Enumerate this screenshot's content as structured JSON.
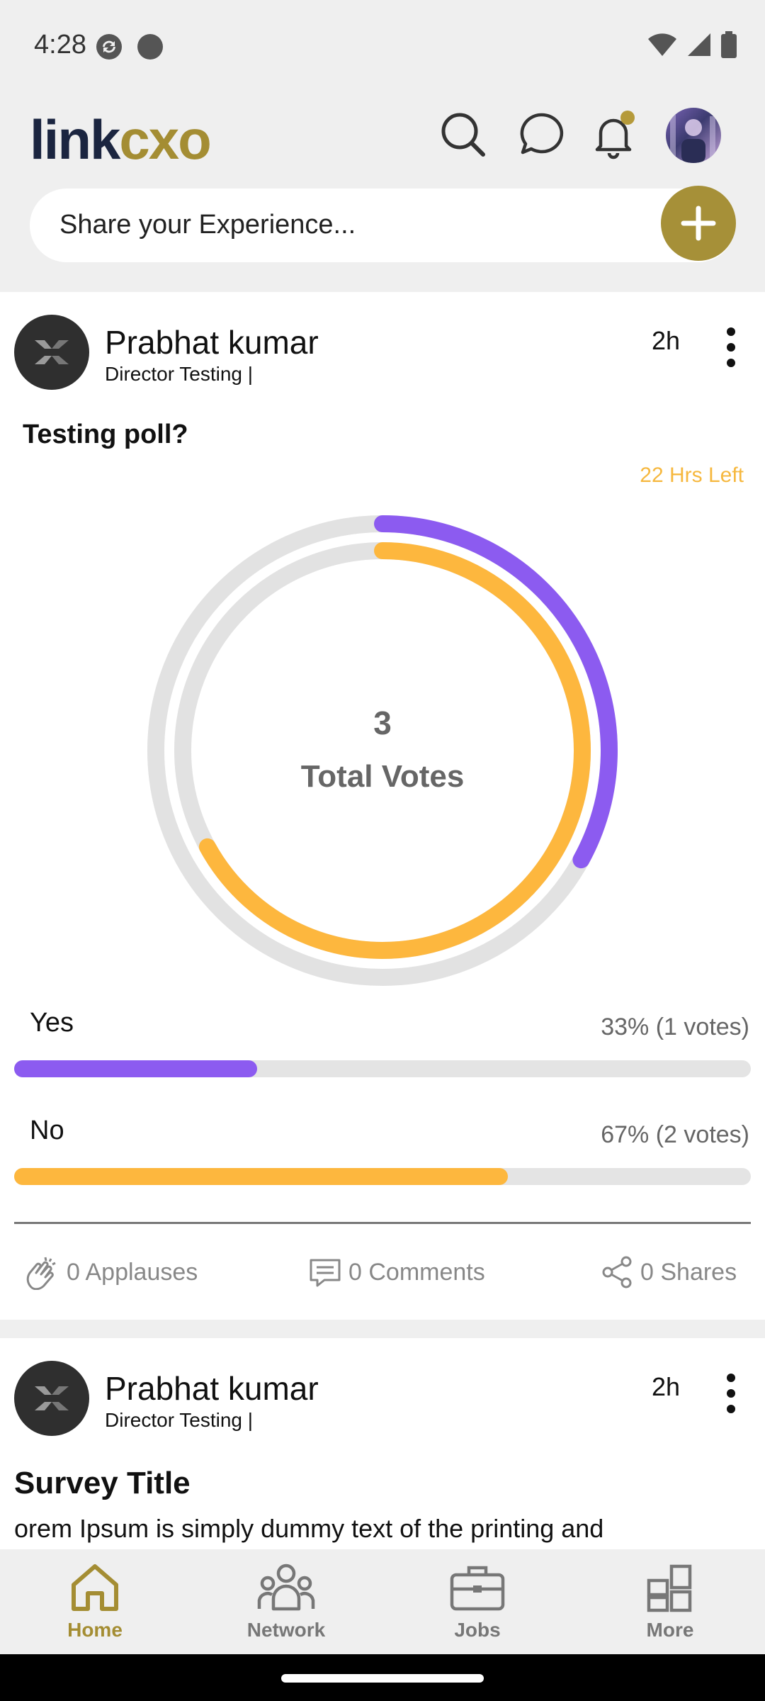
{
  "status_bar": {
    "time": "4:28"
  },
  "header": {
    "logo_text_1": "link",
    "logo_text_2": "cxo",
    "share_placeholder": "Share your Experience..."
  },
  "posts": [
    {
      "author": "Prabhat kumar",
      "role": "Director Testing |",
      "age": "2h",
      "question": "Testing poll?",
      "time_left": "22 Hrs Left",
      "total_votes": "3",
      "total_votes_label": "Total Votes",
      "options": [
        {
          "label": "Yes",
          "result": "33% (1 votes)",
          "percent": 33,
          "color": "#8c5bf0"
        },
        {
          "label": "No",
          "result": "67% (2 votes)",
          "percent": 67,
          "color": "#fdb73e"
        }
      ],
      "actions": {
        "applauses": "0 Applauses",
        "comments": "0 Comments",
        "shares": "0 Shares"
      }
    },
    {
      "author": "Prabhat kumar",
      "role": "Director Testing |",
      "age": "2h",
      "title": "Survey Title",
      "body": "orem Ipsum is simply dummy text of the printing and"
    }
  ],
  "nav": [
    {
      "label": "Home",
      "icon": "home-icon",
      "active": true
    },
    {
      "label": "Network",
      "icon": "network-icon",
      "active": false
    },
    {
      "label": "Jobs",
      "icon": "briefcase-icon",
      "active": false
    },
    {
      "label": "More",
      "icon": "grid-icon",
      "active": false
    }
  ],
  "colors": {
    "accent": "#a48d33",
    "purple": "#8c5bf0",
    "orange": "#fdb73e"
  }
}
